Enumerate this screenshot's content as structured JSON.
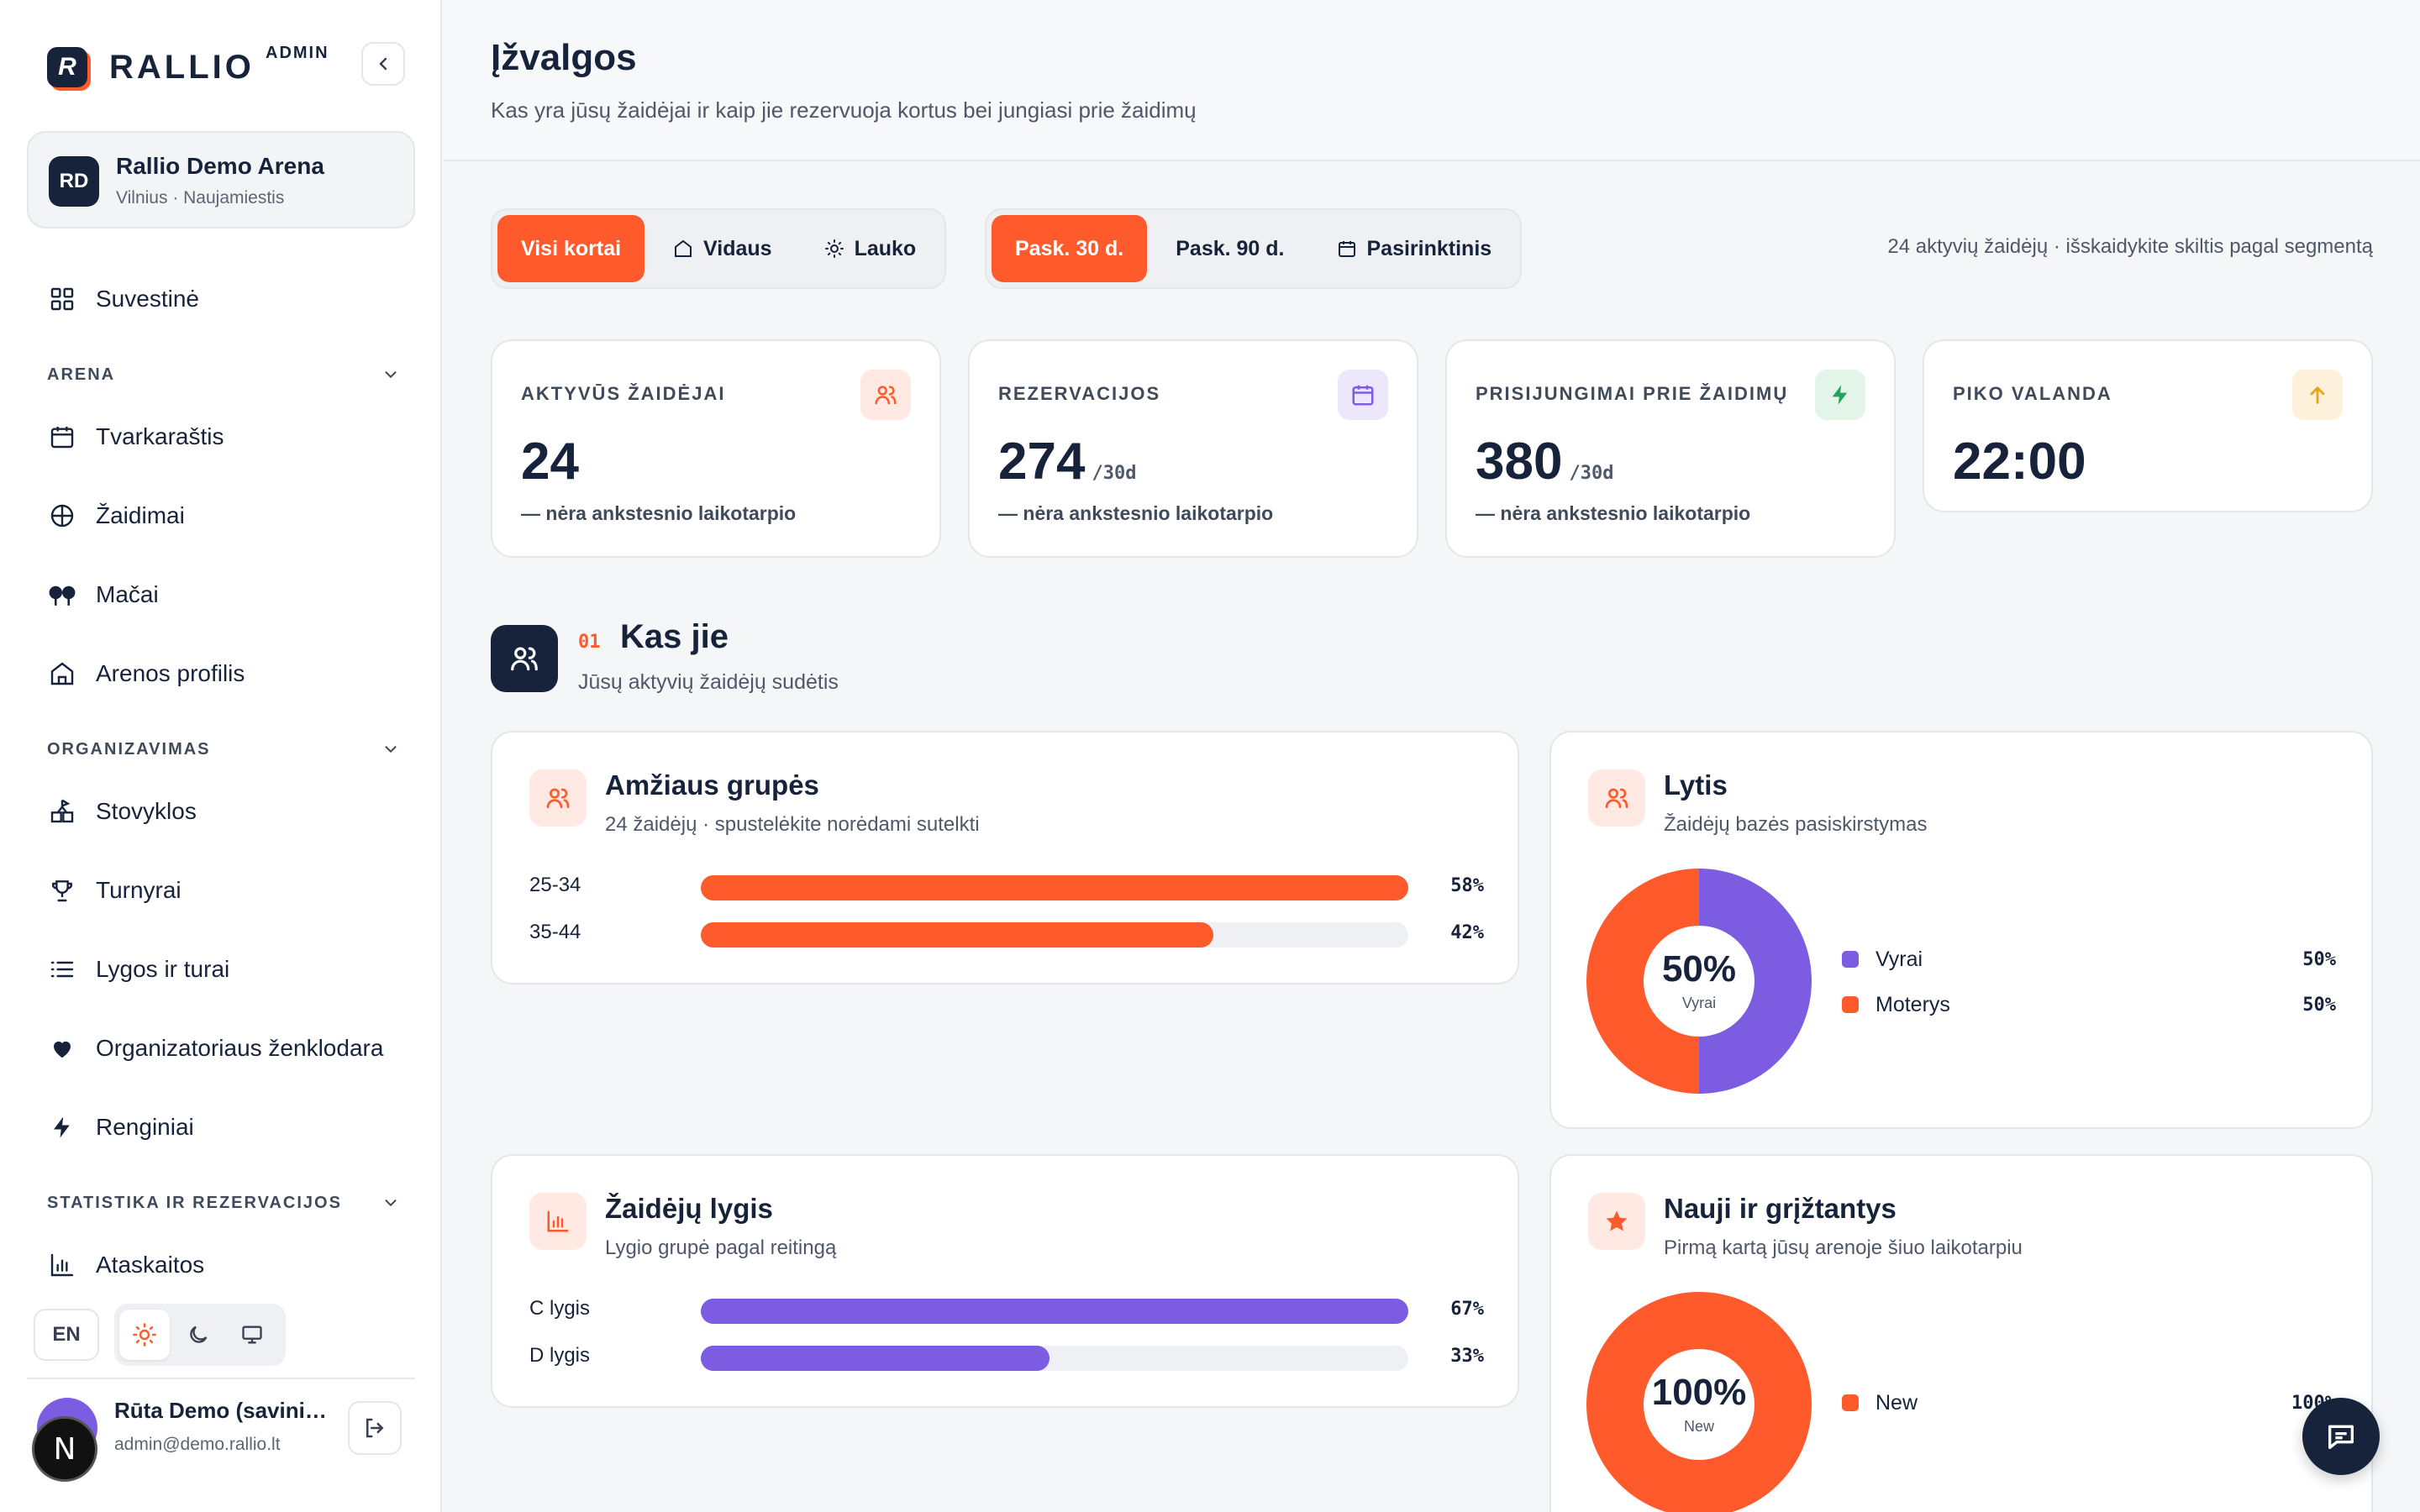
{
  "brand": {
    "name": "RALLIO",
    "tag": "ADMIN",
    "logo_letter": "R"
  },
  "arena": {
    "initials": "RD",
    "name": "Rallio Demo Arena",
    "location": "Vilnius · Naujamiestis"
  },
  "nav": {
    "summary": "Suvestinė",
    "section_arena": "ARENA",
    "arena_items": [
      "Tvarkaraštis",
      "Žaidimai",
      "Mačai",
      "Arenos profilis"
    ],
    "section_org": "ORGANIZAVIMAS",
    "org_items": [
      "Stovyklos",
      "Turnyrai",
      "Lygos ir turai",
      "Organizatoriaus ženklodara",
      "Renginiai"
    ],
    "section_stats": "STATISTIKA IR REZERVACIJOS",
    "stats_items": [
      "Ataskaitos"
    ]
  },
  "footer": {
    "lang": "EN",
    "user_name": "Rūta Demo (savininkė)",
    "user_email": "admin@demo.rallio.lt",
    "badge_letter": "N"
  },
  "page": {
    "title": "Įžvalgos",
    "subtitle": "Kas yra jūsų žaidėjai ir kaip jie rezervuoja kortus bei jungiasi prie žaidimų"
  },
  "filters": {
    "courts": [
      "Visi kortai",
      "Vidaus",
      "Lauko"
    ],
    "periods": [
      "Pask. 30 d.",
      "Pask. 90 d.",
      "Pasirinktinis"
    ],
    "note": "24 aktyvių žaidėjų · išskaidykite skiltis pagal segmentą"
  },
  "kpis": [
    {
      "label": "AKTYVŪS ŽAIDĖJAI",
      "value": "24",
      "unit": "",
      "note": "— nėra ankstesnio laikotarpio",
      "icon": "users-icon",
      "color": "#ff5a2c"
    },
    {
      "label": "REZERVACIJOS",
      "value": "274",
      "unit": "/30d",
      "note": "— nėra ankstesnio laikotarpio",
      "icon": "calendar-icon",
      "color": "#7c5ce0"
    },
    {
      "label": "PRISIJUNGIMAI PRIE ŽAIDIMŲ",
      "value": "380",
      "unit": "/30d",
      "note": "— nėra ankstesnio laikotarpio",
      "icon": "bolt-icon",
      "color": "#22a35a"
    },
    {
      "label": "PIKO VALANDA",
      "value": "22:00",
      "unit": "",
      "note": "",
      "icon": "arrow-up-icon",
      "color": "#e8a21b"
    }
  ],
  "section": {
    "number": "01",
    "title": "Kas jie",
    "subtitle": "Jūsų aktyvių žaidėjų sudėtis"
  },
  "cards": {
    "age": {
      "title": "Amžiaus grupės",
      "subtitle": "24 žaidėjų · spustelėkite norėdami sutelkti"
    },
    "gender": {
      "title": "Lytis",
      "subtitle": "Žaidėjų bazės pasiskirstymas",
      "center_value": "50%",
      "center_label": "Vyrai"
    },
    "level": {
      "title": "Žaidėjų lygis",
      "subtitle": "Lygio grupė pagal reitingą"
    },
    "new": {
      "title": "Nauji ir grįžtantys",
      "subtitle": "Pirmą kartą jūsų arenoje šiuo laikotarpiu",
      "center_value": "100%",
      "center_label": "New"
    }
  },
  "chart_data": [
    {
      "type": "bar",
      "orientation": "horizontal",
      "categories": [
        "25-34",
        "35-44"
      ],
      "values": [
        58,
        42
      ],
      "value_labels": [
        "58%",
        "42%"
      ],
      "color": "#ff5a2c"
    },
    {
      "type": "pie",
      "donut": true,
      "categories": [
        "Vyrai",
        "Moterys"
      ],
      "values": [
        50,
        50
      ],
      "value_labels": [
        "50%",
        "50%"
      ],
      "colors": [
        "#7c5ce0",
        "#ff5a2c"
      ]
    },
    {
      "type": "bar",
      "orientation": "horizontal",
      "categories": [
        "C lygis",
        "D lygis"
      ],
      "values": [
        67,
        33
      ],
      "value_labels": [
        "67%",
        "33%"
      ],
      "color": "#7c5ce0"
    },
    {
      "type": "pie",
      "donut": true,
      "categories": [
        "New"
      ],
      "values": [
        100
      ],
      "value_labels": [
        "100%"
      ],
      "colors": [
        "#ff5a2c"
      ]
    }
  ]
}
